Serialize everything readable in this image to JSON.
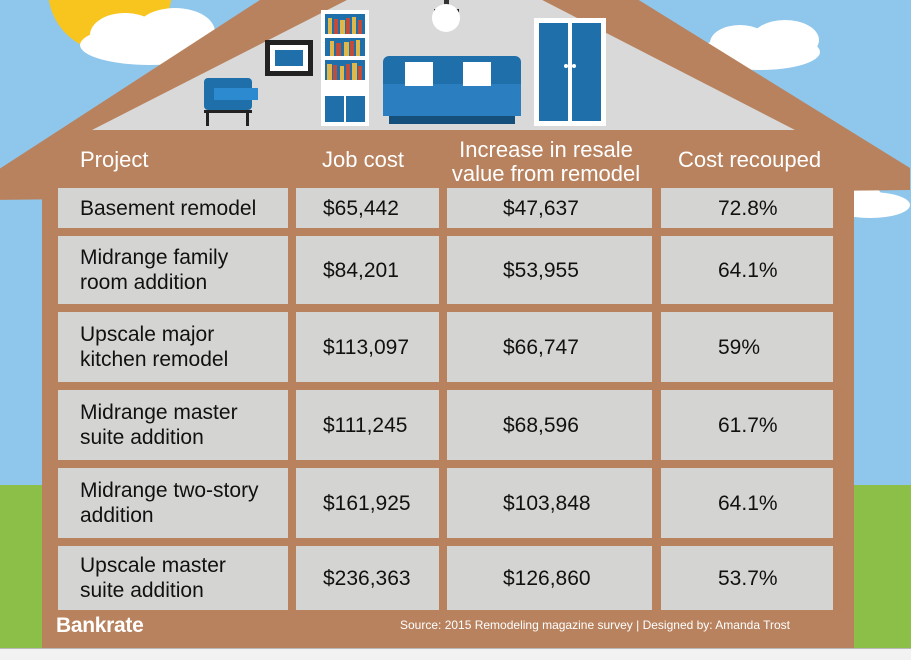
{
  "table": {
    "headers": {
      "project": "Project",
      "job_cost": "Job cost",
      "increase": "Increase in resale\nvalue from remodel",
      "recouped": "Cost recouped"
    },
    "rows": [
      {
        "project": "Basement remodel",
        "job_cost": "$65,442",
        "increase": "$47,637",
        "recouped": "72.8%"
      },
      {
        "project": "Midrange family\nroom addition",
        "job_cost": "$84,201",
        "increase": "$53,955",
        "recouped": "64.1%"
      },
      {
        "project": "Upscale major\nkitchen remodel",
        "job_cost": "$113,097",
        "increase": "$66,747",
        "recouped": "59%"
      },
      {
        "project": "Midrange master\nsuite addition",
        "job_cost": "$111,245",
        "increase": "$68,596",
        "recouped": "61.7%"
      },
      {
        "project": "Midrange two-story\naddition",
        "job_cost": "$161,925",
        "increase": "$103,848",
        "recouped": "64.1%"
      },
      {
        "project": "Upscale master\nsuite addition",
        "job_cost": "$236,363",
        "increase": "$126,860",
        "recouped": "53.7%"
      }
    ]
  },
  "footer": {
    "brand": "Bankrate",
    "source": "Source: 2015 Remodeling magazine survey | Designed by: Amanda Trost"
  },
  "colors": {
    "sky": "#8fc6ec",
    "house": "#b8825e",
    "attic": "#d9d9d9",
    "cell": "#d4d4d2",
    "furniture": "#1f6fab",
    "grass": "#8cbf47"
  }
}
